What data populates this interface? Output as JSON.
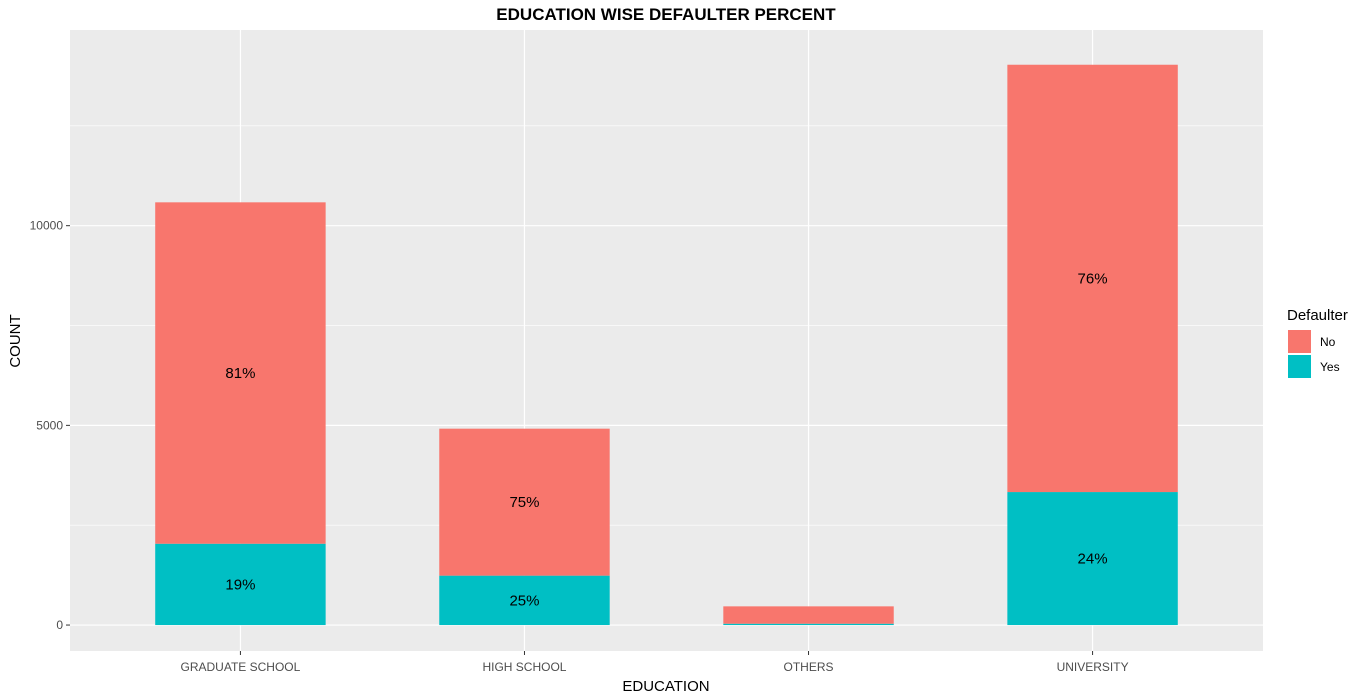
{
  "chart_data": {
    "type": "bar",
    "stacked": true,
    "title": "EDUCATION WISE DEFAULTER PERCENT",
    "xlabel": "EDUCATION",
    "ylabel": "COUNT",
    "categories": [
      "GRADUATE SCHOOL",
      "HIGH SCHOOL",
      "OTHERS",
      "UNIVERSITY"
    ],
    "ylim": [
      -650,
      14900
    ],
    "yticks": [
      0,
      5000,
      10000
    ],
    "grid": true,
    "legend": {
      "title": "Defaulter",
      "position": "right"
    },
    "series": [
      {
        "name": "Yes",
        "color": "#00BFC4",
        "values": [
          2036,
          1237,
          33,
          3330
        ],
        "labels": [
          "19%",
          "25%",
          "",
          "24%"
        ]
      },
      {
        "name": "No",
        "color": "#F8766D",
        "values": [
          8549,
          3680,
          435,
          10700
        ],
        "labels": [
          "81%",
          "75%",
          "",
          "76%"
        ]
      }
    ]
  }
}
